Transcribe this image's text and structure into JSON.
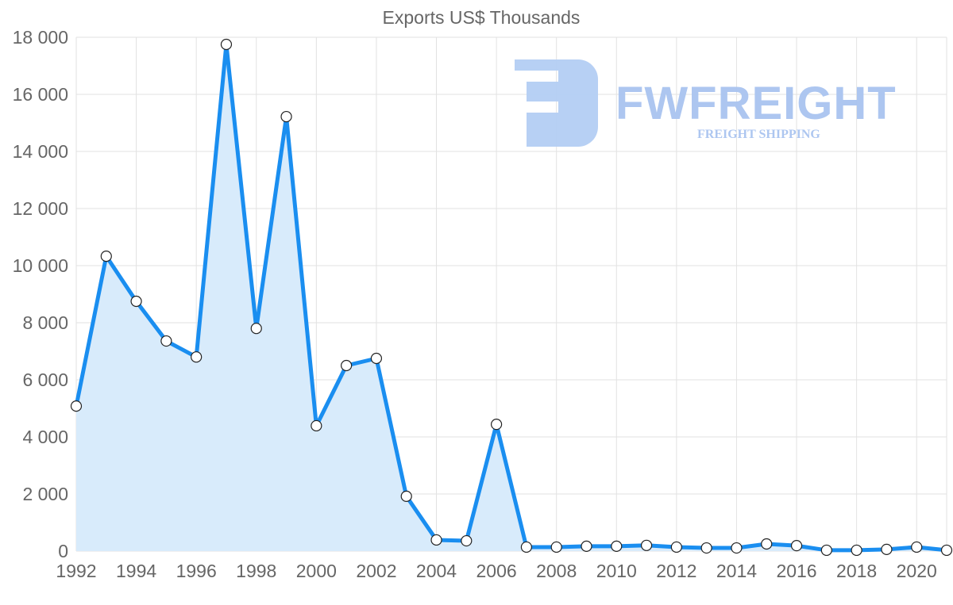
{
  "chart_data": {
    "type": "line",
    "title": "Exports US$ Thousands",
    "xlabel": "",
    "ylabel": "",
    "x": [
      1992,
      1993,
      1994,
      1995,
      1996,
      1997,
      1998,
      1999,
      2000,
      2001,
      2002,
      2003,
      2004,
      2005,
      2006,
      2007,
      2008,
      2009,
      2010,
      2011,
      2012,
      2013,
      2014,
      2015,
      2016,
      2017,
      2018,
      2019,
      2020,
      2021
    ],
    "series": [
      {
        "name": "Exports US$ Thousands",
        "values": [
          5080,
          10330,
          8750,
          7360,
          6800,
          17750,
          7800,
          15220,
          4390,
          6500,
          6750,
          1920,
          390,
          360,
          4440,
          140,
          140,
          170,
          170,
          200,
          140,
          110,
          110,
          250,
          190,
          30,
          30,
          60,
          140,
          30
        ],
        "color": "#1a8ef0",
        "fill": "#d8ebfb"
      }
    ],
    "xlim": [
      1992,
      2021
    ],
    "ylim": [
      0,
      18000
    ],
    "x_ticks": [
      "1992",
      "1994",
      "1996",
      "1998",
      "2000",
      "2002",
      "2004",
      "2006",
      "2008",
      "2010",
      "2012",
      "2014",
      "2016",
      "2018",
      "2020"
    ],
    "y_ticks": [
      "0",
      "2 000",
      "4 000",
      "6 000",
      "8 000",
      "10 000",
      "12 000",
      "14 000",
      "16 000",
      "18 000"
    ],
    "grid": true,
    "legend": "none"
  },
  "watermark": {
    "brand": "FWFREIGHT",
    "tagline": "FREIGHT SHIPPING"
  }
}
